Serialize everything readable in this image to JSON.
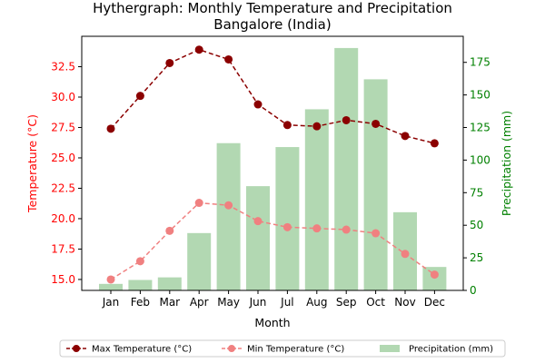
{
  "chart_data": {
    "type": "bar+line",
    "title_line1": "Hythergraph: Monthly Temperature and Precipitation",
    "title_line2": "Bangalore (India)",
    "xlabel": "Month",
    "ylabel_left": "Temperature (°C)",
    "ylabel_right": "Precipitation (mm)",
    "categories": [
      "Jan",
      "Feb",
      "Mar",
      "Apr",
      "May",
      "Jun",
      "Jul",
      "Aug",
      "Sep",
      "Oct",
      "Nov",
      "Dec"
    ],
    "series": [
      {
        "name": "Max Temperature (°C)",
        "type": "line",
        "axis": "left",
        "color": "#8b0000",
        "values": [
          27.4,
          30.1,
          32.8,
          33.9,
          33.1,
          29.4,
          27.7,
          27.6,
          28.1,
          27.8,
          26.8,
          26.2
        ]
      },
      {
        "name": "Min Temperature (°C)",
        "type": "line",
        "axis": "left",
        "color": "#f08080",
        "values": [
          15.0,
          16.5,
          19.0,
          21.3,
          21.1,
          19.8,
          19.3,
          19.2,
          19.1,
          18.8,
          17.1,
          15.4
        ]
      },
      {
        "name": "Precipitation (mm)",
        "type": "bar",
        "axis": "right",
        "color": "#b2d8b2",
        "values": [
          5,
          8,
          10,
          44,
          113,
          80,
          110,
          139,
          186,
          162,
          60,
          18
        ]
      }
    ],
    "ylim_left": [
      14.1,
      35.0
    ],
    "yticks_left": [
      "15.0",
      "17.5",
      "20.0",
      "22.5",
      "25.0",
      "27.5",
      "30.0",
      "32.5"
    ],
    "ylim_right": [
      0,
      195
    ],
    "yticks_right": [
      "0",
      "25",
      "50",
      "75",
      "100",
      "125",
      "150",
      "175"
    ],
    "grid": false,
    "legend_placement": "bottom-center",
    "left_axis_color": "#ff0000",
    "right_axis_color": "#008000"
  }
}
